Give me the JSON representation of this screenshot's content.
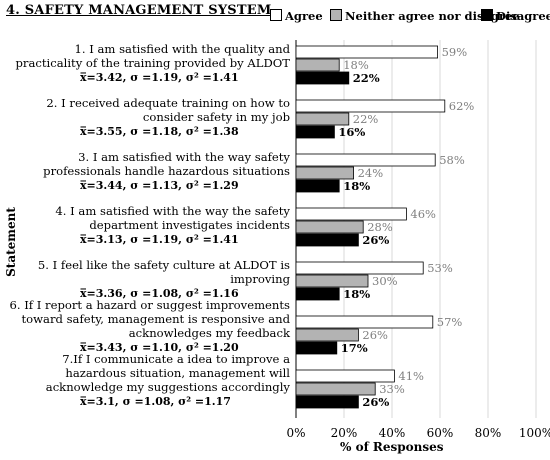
{
  "title": "4. SAFETY MANAGEMENT SYSTEM",
  "colors": {
    "agree": "#ffffff",
    "neither": "#b3b3b3",
    "disagree": "#000000"
  },
  "chart_data": {
    "type": "bar",
    "orientation": "horizontal",
    "xlabel": "% of Responses",
    "ylabel": "Statement",
    "xlim": [
      0,
      100
    ],
    "xticks": [
      "0%",
      "20%",
      "40%",
      "60%",
      "80%",
      "100%"
    ],
    "grid": true,
    "legend": "top-right",
    "series": [
      {
        "name": "Agree",
        "values": [
          59,
          62,
          58,
          46,
          53,
          57,
          41
        ]
      },
      {
        "name": "Neither agree nor disagree",
        "values": [
          18,
          22,
          24,
          28,
          30,
          26,
          33
        ]
      },
      {
        "name": "Disagree",
        "values": [
          22,
          16,
          18,
          26,
          18,
          17,
          26
        ]
      }
    ],
    "value_labels": [
      [
        "59%",
        "18%",
        "22%"
      ],
      [
        "62%",
        "22%",
        "16%"
      ],
      [
        "58%",
        "24%",
        "18%"
      ],
      [
        "46%",
        "28%",
        "26%"
      ],
      [
        "53%",
        "30%",
        "18%"
      ],
      [
        "57%",
        "26%",
        "17%"
      ],
      [
        "41%",
        "33%",
        "26%"
      ]
    ],
    "categories": [
      {
        "statement": "1. I am satisfied with the quality and practicality of the training provided by ALDOT",
        "stats": "x̅=3.42, σ =1.19, σ² =1.41"
      },
      {
        "statement": "2. I received adequate training on how to consider safety in my job",
        "stats": "x̅=3.55, σ =1.18, σ² =1.38"
      },
      {
        "statement": "3. I am satisfied with the way safety professionals handle hazardous situations",
        "stats": "x̅=3.44, σ =1.13, σ² =1.29"
      },
      {
        "statement": "4. I am satisfied with the way the safety department investigates incidents",
        "stats": "x̅=3.13, σ =1.19, σ² =1.41"
      },
      {
        "statement": "5. I feel like the safety culture at ALDOT is improving",
        "stats": "x̅=3.36, σ =1.08, σ² =1.16"
      },
      {
        "statement": "6. If I report a hazard or suggest improvements toward safety, management is responsive and acknowledges my feedback",
        "stats": "x̅=3.43, σ =1.10, σ² =1.20"
      },
      {
        "statement": "7.If I communicate a idea to improve a hazardous situation, management will acknowledge my suggestions accordingly",
        "stats": "x̅=3.1, σ =1.08, σ² =1.17"
      }
    ]
  }
}
